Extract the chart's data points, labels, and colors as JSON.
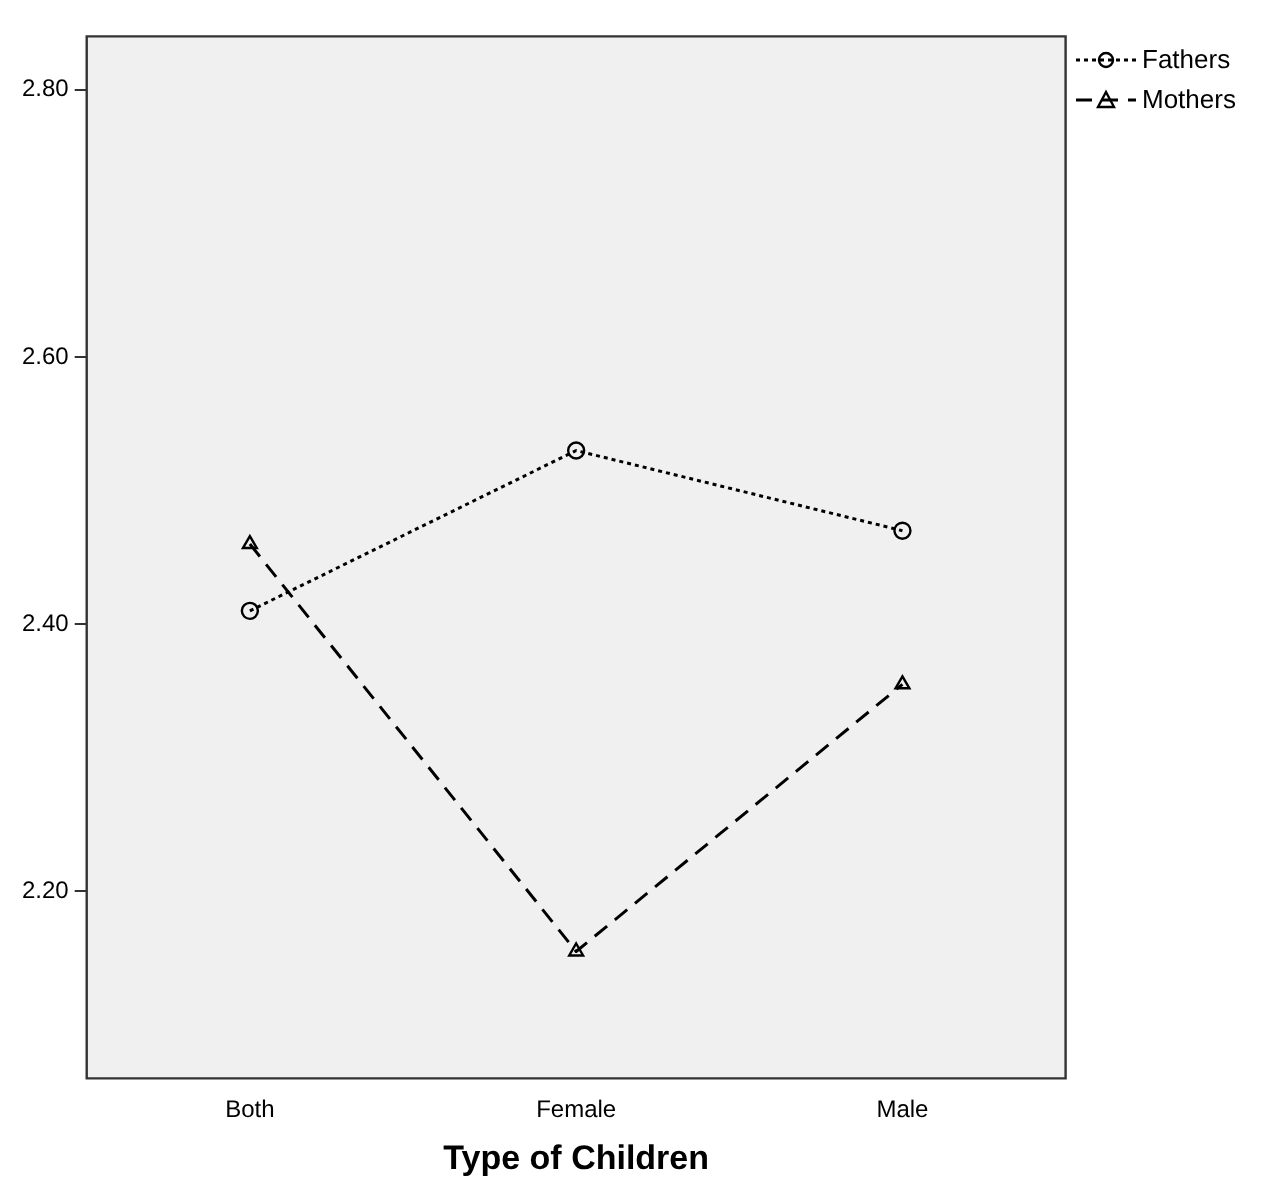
{
  "chart_data": {
    "type": "line",
    "xlabel": "Type of Children",
    "categories": [
      "Both",
      "Female",
      "Male"
    ],
    "series": [
      {
        "name": "Fathers",
        "color": "#000000",
        "values": [
          2.41,
          2.53,
          2.47
        ],
        "marker": "circle",
        "line_style": "dotted"
      },
      {
        "name": "Mothers",
        "color": "#000000",
        "values": [
          2.46,
          2.155,
          2.355
        ],
        "marker": "triangle",
        "line_style": "dashed"
      }
    ],
    "ylim": [
      2.06,
      2.84
    ],
    "yticks": [
      {
        "value": 2.2,
        "label": "2.20"
      },
      {
        "value": 2.4,
        "label": "2.40"
      },
      {
        "value": 2.6,
        "label": "2.60"
      },
      {
        "value": 2.8,
        "label": "2.80"
      }
    ],
    "grid": false,
    "legend": "top right"
  }
}
